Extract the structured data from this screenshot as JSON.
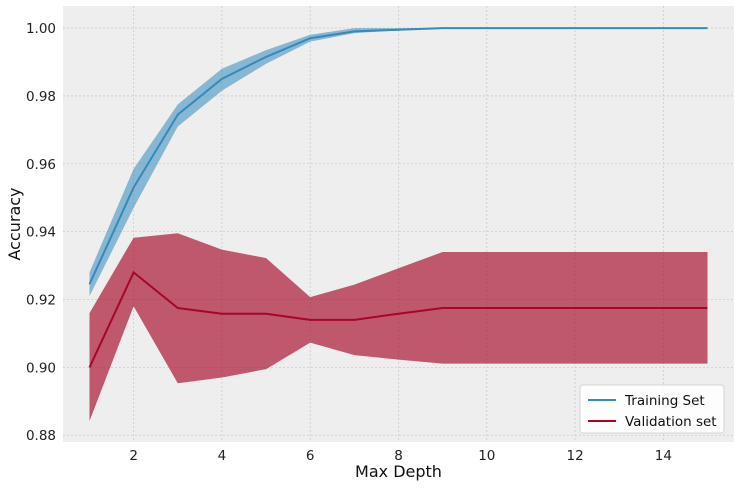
{
  "chart_data": {
    "type": "line",
    "xlabel": "Max Depth",
    "ylabel": "Accuracy",
    "xlim": [
      0.4,
      15.6
    ],
    "ylim": [
      0.878,
      1.0065
    ],
    "xticks": [
      2,
      4,
      6,
      8,
      10,
      12,
      14
    ],
    "yticks": [
      0.88,
      0.9,
      0.92,
      0.94,
      0.96,
      0.98,
      1.0
    ],
    "xtick_labels": [
      "2",
      "4",
      "6",
      "8",
      "10",
      "12",
      "14"
    ],
    "ytick_labels": [
      "0.88",
      "0.90",
      "0.92",
      "0.94",
      "0.96",
      "0.98",
      "1.00"
    ],
    "grid": true,
    "legend_position": "bottom-right",
    "x": [
      1,
      2,
      3,
      4,
      5,
      6,
      7,
      8,
      9,
      10,
      11,
      12,
      13,
      14,
      15
    ],
    "series": [
      {
        "name": "Training Set",
        "color": "#348abd",
        "band_color": "#7fb3d5",
        "values": [
          0.9245,
          0.953,
          0.9745,
          0.985,
          0.9915,
          0.997,
          0.999,
          0.9995,
          1.0,
          1.0,
          1.0,
          1.0,
          1.0,
          1.0,
          1.0
        ],
        "lower": [
          0.921,
          0.947,
          0.971,
          0.9815,
          0.9895,
          0.996,
          0.9985,
          0.9993,
          1.0,
          1.0,
          1.0,
          1.0,
          1.0,
          1.0,
          1.0
        ],
        "upper": [
          0.928,
          0.9585,
          0.9775,
          0.988,
          0.9935,
          0.998,
          1.0,
          1.0,
          1.0,
          1.0,
          1.0,
          1.0,
          1.0,
          1.0,
          1.0
        ]
      },
      {
        "name": "Validation set",
        "color": "#a60628",
        "band_color": "#c86e80",
        "values": [
          0.9,
          0.928,
          0.9175,
          0.9158,
          0.9158,
          0.914,
          0.914,
          0.9158,
          0.9175,
          0.9175,
          0.9175,
          0.9175,
          0.9175,
          0.9175,
          0.9175
        ],
        "lower": [
          0.8842,
          0.918,
          0.8953,
          0.897,
          0.8995,
          0.9073,
          0.9036,
          0.9023,
          0.9011,
          0.9011,
          0.9011,
          0.9011,
          0.9011,
          0.9011,
          0.9011
        ],
        "upper": [
          0.916,
          0.9382,
          0.9395,
          0.9347,
          0.9322,
          0.9207,
          0.9244,
          0.9292,
          0.934,
          0.934,
          0.934,
          0.934,
          0.934,
          0.934,
          0.934
        ]
      }
    ],
    "colors": {
      "plot_background": "#eeeeee",
      "grid": "#cbcbcb"
    }
  }
}
